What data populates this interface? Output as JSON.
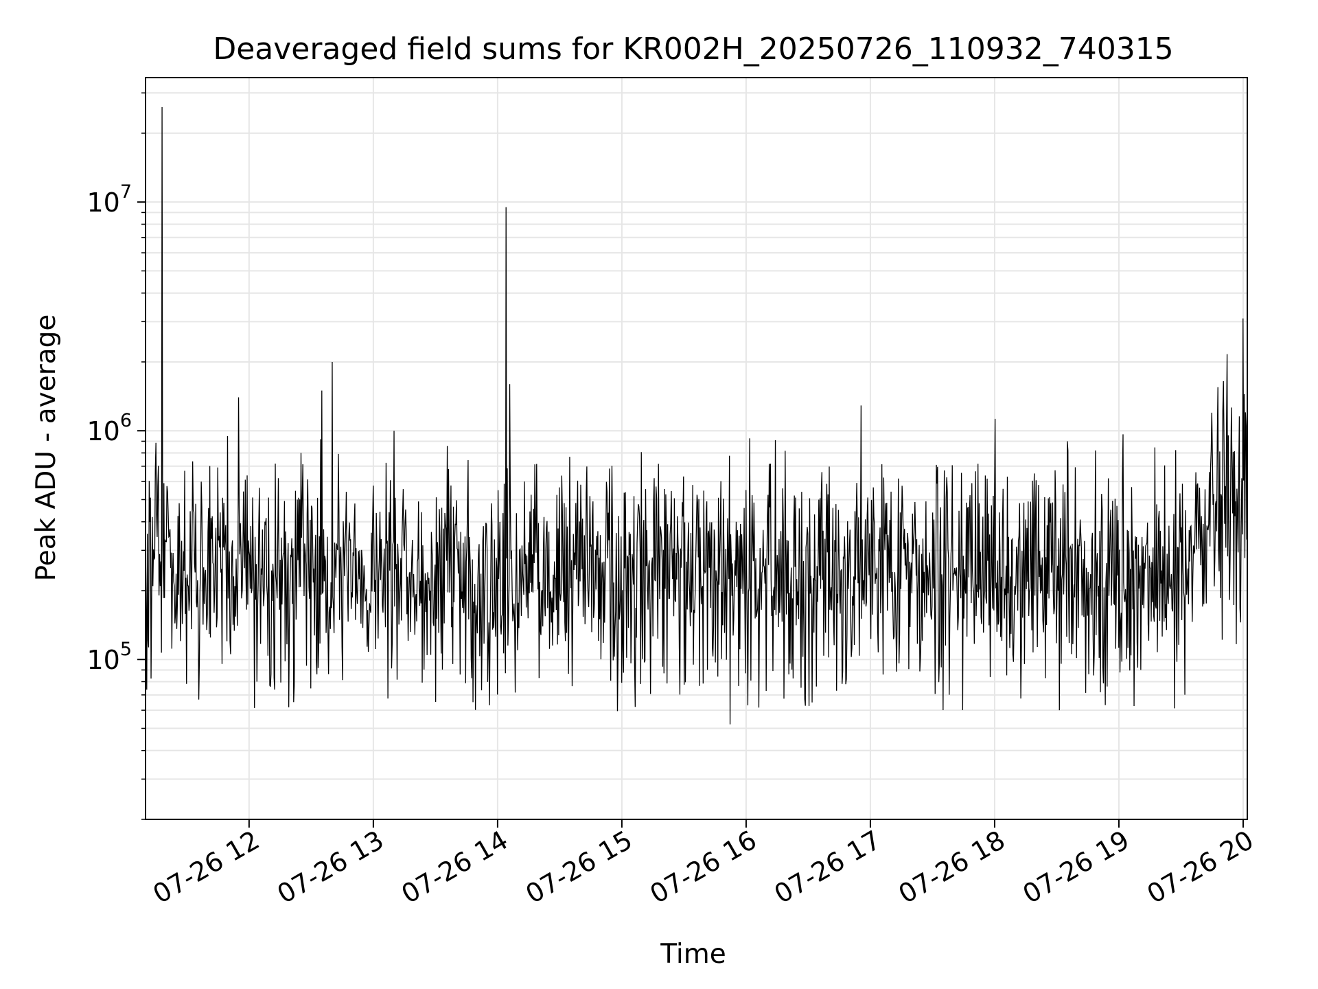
{
  "chart_data": {
    "type": "line",
    "title": "Deaveraged field sums for KR002H_20250726_110932_740315",
    "xlabel": "Time",
    "ylabel": "Peak ADU - average",
    "x_axis": {
      "type": "time",
      "range": [
        "2025-07-26 11:10",
        "2025-07-26 20:02"
      ],
      "tick_labels": [
        "07-26 12",
        "07-26 13",
        "07-26 14",
        "07-26 15",
        "07-26 16",
        "07-26 17",
        "07-26 18",
        "07-26 19",
        "07-26 20"
      ],
      "tick_times": [
        "2025-07-26 12:00",
        "2025-07-26 13:00",
        "2025-07-26 14:00",
        "2025-07-26 15:00",
        "2025-07-26 16:00",
        "2025-07-26 17:00",
        "2025-07-26 18:00",
        "2025-07-26 19:00",
        "2025-07-26 20:00"
      ]
    },
    "y_axis": {
      "scale": "log",
      "range": [
        20000,
        35000000
      ],
      "tick_values": [
        100000,
        1000000,
        10000000
      ],
      "tick_labels": [
        {
          "base": "10",
          "exp": "5"
        },
        {
          "base": "10",
          "exp": "6"
        },
        {
          "base": "10",
          "exp": "7"
        }
      ]
    },
    "grid": true,
    "legend": "none",
    "colors": {
      "line": "#000000",
      "grid": "#e6e6e6",
      "axes": "#000000"
    },
    "series": [
      {
        "values_summary": "dense noisy trace, baseline about 2e5 to 3e5 peak ADU, rising to about 5e5 after 19:30",
        "x": [
          "2025-07-26 11:10",
          "2025-07-26 11:12",
          "2025-07-26 11:15",
          "2025-07-26 11:18",
          "2025-07-26 11:20",
          "2025-07-26 11:25",
          "2025-07-26 11:30",
          "2025-07-26 11:40",
          "2025-07-26 11:55",
          "2025-07-26 12:10",
          "2025-07-26 12:25",
          "2025-07-26 12:35",
          "2025-07-26 12:40",
          "2025-07-26 12:48",
          "2025-07-26 13:00",
          "2025-07-26 13:10",
          "2025-07-26 13:30",
          "2025-07-26 13:50",
          "2025-07-26 14:00",
          "2025-07-26 14:04",
          "2025-07-26 14:06",
          "2025-07-26 14:08",
          "2025-07-26 14:20",
          "2025-07-26 14:40",
          "2025-07-26 15:00",
          "2025-07-26 15:20",
          "2025-07-26 15:40",
          "2025-07-26 16:00",
          "2025-07-26 16:20",
          "2025-07-26 16:40",
          "2025-07-26 17:00",
          "2025-07-26 17:20",
          "2025-07-26 17:40",
          "2025-07-26 18:00",
          "2025-07-26 18:20",
          "2025-07-26 18:35",
          "2025-07-26 18:50",
          "2025-07-26 19:10",
          "2025-07-26 19:30",
          "2025-07-26 19:40",
          "2025-07-26 19:45",
          "2025-07-26 19:55",
          "2025-07-26 20:00",
          "2025-07-26 20:02"
        ],
        "values": [
          300000,
          450000,
          700000,
          26000000,
          400000,
          300000,
          250000,
          200000,
          1400000,
          220000,
          800000,
          1500000,
          2000000,
          250000,
          200000,
          1000000,
          250000,
          300000,
          250000,
          9500000,
          1600000,
          250000,
          250000,
          200000,
          220000,
          230000,
          220000,
          250000,
          230000,
          220000,
          250000,
          230000,
          220000,
          200000,
          220000,
          900000,
          250000,
          250000,
          400000,
          600000,
          1200000,
          500000,
          3100000,
          500000
        ]
      }
    ]
  }
}
